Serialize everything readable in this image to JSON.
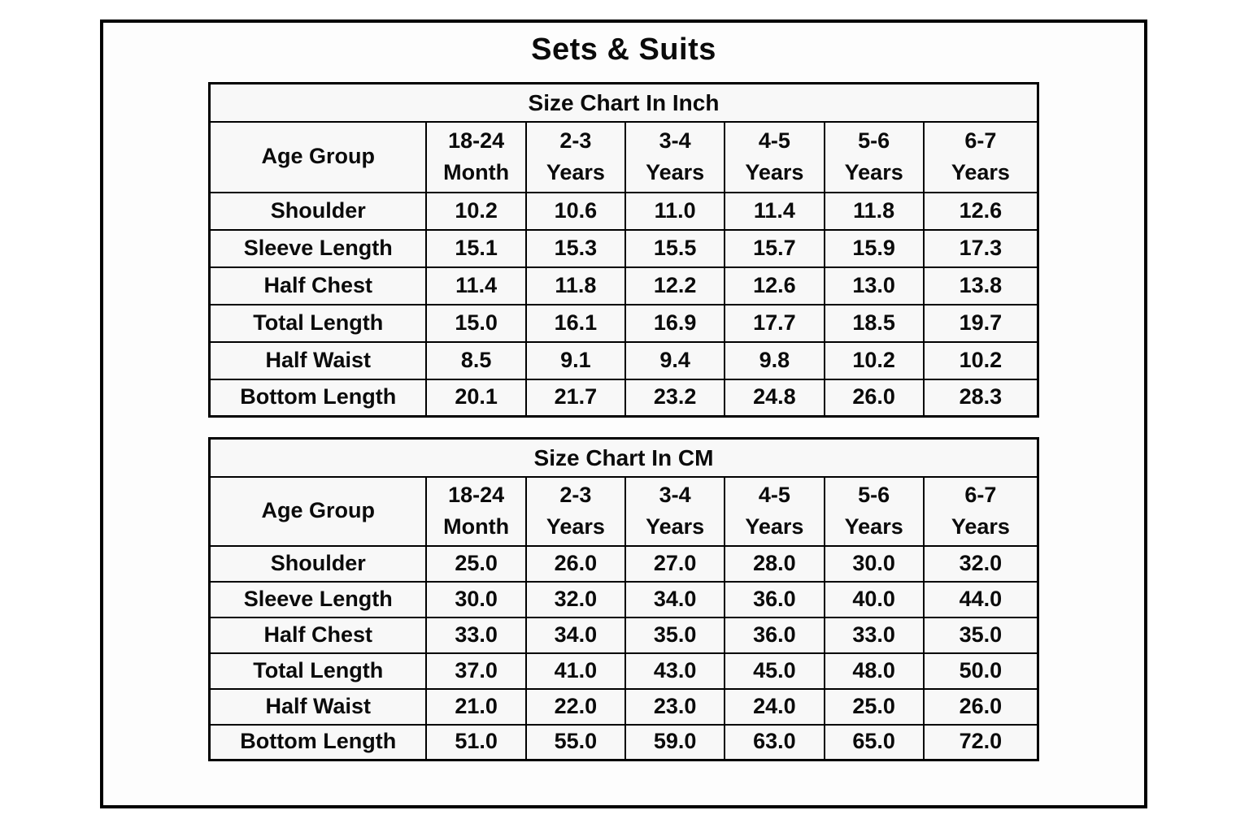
{
  "page_title": "Sets & Suits",
  "colors": {
    "border": "#000000",
    "cell_bg": "#f8f8f8",
    "page_bg": "#ffffff",
    "text": "#0b0b0b"
  },
  "tables": [
    {
      "title": "Size Chart In Inch",
      "corner_label": "Age Group",
      "columns": [
        {
          "top": "18-24",
          "bottom": "Month"
        },
        {
          "top": "2-3",
          "bottom": "Years"
        },
        {
          "top": "3-4",
          "bottom": "Years"
        },
        {
          "top": "4-5",
          "bottom": "Years"
        },
        {
          "top": "5-6",
          "bottom": "Years"
        },
        {
          "top": "6-7",
          "bottom": "Years"
        }
      ],
      "rows": [
        {
          "label": "Shoulder",
          "values": [
            "10.2",
            "10.6",
            "11.0",
            "11.4",
            "11.8",
            "12.6"
          ]
        },
        {
          "label": "Sleeve Length",
          "values": [
            "15.1",
            "15.3",
            "15.5",
            "15.7",
            "15.9",
            "17.3"
          ]
        },
        {
          "label": "Half Chest",
          "values": [
            "11.4",
            "11.8",
            "12.2",
            "12.6",
            "13.0",
            "13.8"
          ]
        },
        {
          "label": "Total Length",
          "values": [
            "15.0",
            "16.1",
            "16.9",
            "17.7",
            "18.5",
            "19.7"
          ]
        },
        {
          "label": "Half Waist",
          "values": [
            "8.5",
            "9.1",
            "9.4",
            "9.8",
            "10.2",
            "10.2"
          ]
        },
        {
          "label": "Bottom Length",
          "values": [
            "20.1",
            "21.7",
            "23.2",
            "24.8",
            "26.0",
            "28.3"
          ]
        }
      ]
    },
    {
      "title": "Size Chart In CM",
      "corner_label": "Age Group",
      "columns": [
        {
          "top": "18-24",
          "bottom": "Month"
        },
        {
          "top": "2-3",
          "bottom": "Years"
        },
        {
          "top": "3-4",
          "bottom": "Years"
        },
        {
          "top": "4-5",
          "bottom": "Years"
        },
        {
          "top": "5-6",
          "bottom": "Years"
        },
        {
          "top": "6-7",
          "bottom": "Years"
        }
      ],
      "rows": [
        {
          "label": "Shoulder",
          "values": [
            "25.0",
            "26.0",
            "27.0",
            "28.0",
            "30.0",
            "32.0"
          ]
        },
        {
          "label": "Sleeve Length",
          "values": [
            "30.0",
            "32.0",
            "34.0",
            "36.0",
            "40.0",
            "44.0"
          ]
        },
        {
          "label": "Half Chest",
          "values": [
            "33.0",
            "34.0",
            "35.0",
            "36.0",
            "33.0",
            "35.0"
          ]
        },
        {
          "label": "Total Length",
          "values": [
            "37.0",
            "41.0",
            "43.0",
            "45.0",
            "48.0",
            "50.0"
          ]
        },
        {
          "label": "Half Waist",
          "values": [
            "21.0",
            "22.0",
            "23.0",
            "24.0",
            "25.0",
            "26.0"
          ]
        },
        {
          "label": "Bottom Length",
          "values": [
            "51.0",
            "55.0",
            "59.0",
            "63.0",
            "65.0",
            "72.0"
          ]
        }
      ]
    }
  ]
}
